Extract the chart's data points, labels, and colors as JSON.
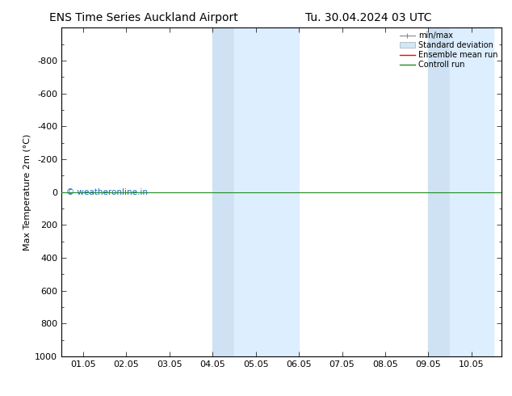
{
  "title_left": "ENS Time Series Auckland Airport",
  "title_right": "Tu. 30.04.2024 03 UTC",
  "ylabel": "Max Temperature 2m (°C)",
  "ylim_top": -1000,
  "ylim_bottom": 1000,
  "yticks": [
    -800,
    -600,
    -400,
    -200,
    0,
    200,
    400,
    600,
    800,
    1000
  ],
  "xtick_labels": [
    "01.05",
    "02.05",
    "03.05",
    "04.05",
    "05.05",
    "06.05",
    "07.05",
    "08.05",
    "09.05",
    "10.05"
  ],
  "xtick_positions": [
    0,
    1,
    2,
    3,
    4,
    5,
    6,
    7,
    8,
    9
  ],
  "shaded_bands": [
    {
      "xmin": 3.0,
      "xmax": 3.5,
      "color": "#d6eaf8"
    },
    {
      "xmin": 3.5,
      "xmax": 5.0,
      "color": "#ddeeff"
    },
    {
      "xmin": 8.0,
      "xmax": 8.5,
      "color": "#d6eaf8"
    },
    {
      "xmin": 8.5,
      "xmax": 9.5,
      "color": "#ddeeff"
    }
  ],
  "control_run_y": 0,
  "control_run_color": "#228B22",
  "ensemble_mean_color": "#ff0000",
  "minmax_color": "#888888",
  "stddev_color": "#cccccc",
  "watermark_text": "© weatheronline.in",
  "watermark_color": "#1a6bb5",
  "background_color": "#ffffff",
  "plot_bg_color": "#ffffff",
  "legend_entries": [
    "min/max",
    "Standard deviation",
    "Ensemble mean run",
    "Controll run"
  ],
  "legend_colors": [
    "#888888",
    "#cccccc",
    "#ff0000",
    "#228B22"
  ],
  "title_fontsize": 10,
  "axis_fontsize": 8,
  "tick_fontsize": 8
}
